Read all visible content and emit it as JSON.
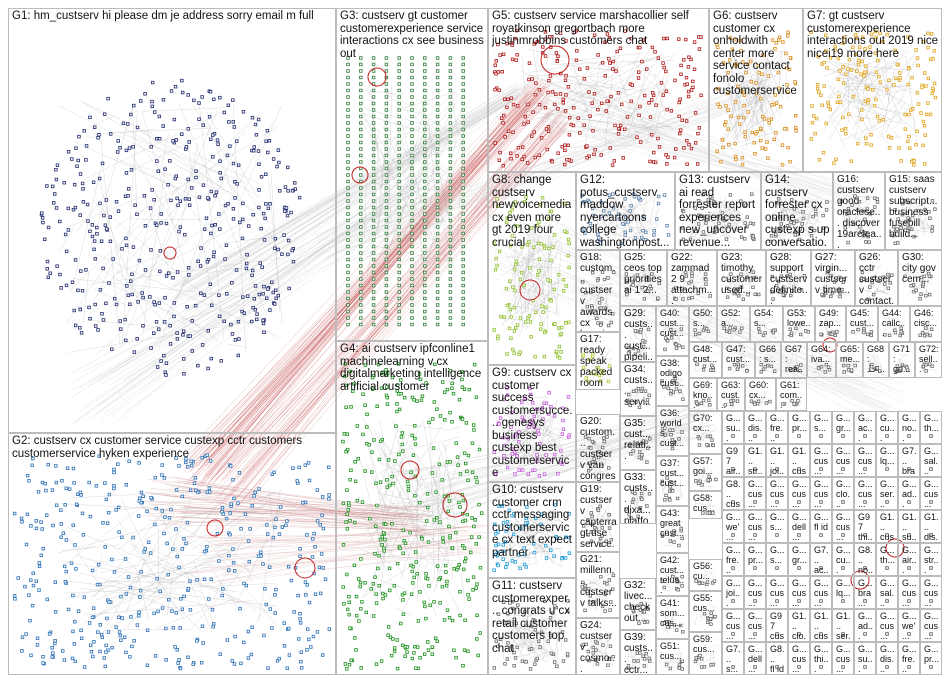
{
  "groups": [
    {
      "id": "G1",
      "label": "G1: hm_custserv hi please dm je address sorry email m full",
      "color": "#1f2a6b"
    },
    {
      "id": "G2",
      "label": "G2: custserv cx customer service custexp cctr customers customerservice hyken experience",
      "color": "#2c6fb5"
    },
    {
      "id": "G3",
      "label": "G3: custserv gt customer customerexperience service interactions cx see business out",
      "color": "#2f7a3a"
    },
    {
      "id": "G4",
      "label": "G4: ai custserv ipfconline1 machinelearning v cx digitalmarketing intelligence artificial customer",
      "color": "#1b8f1b"
    },
    {
      "id": "G5",
      "label": "G5: custserv service marshacollier self royatkinson gregortbach more justinmrobbins customers chat",
      "color": "#b01818"
    },
    {
      "id": "G6",
      "label": "G6: custserv customer cx onholdwith center more service contact fonolo customerservice",
      "color": "#d98b1a"
    },
    {
      "id": "G7",
      "label": "G7: gt custserv customerexperience interactions out 2019 nice nicei19 more here",
      "color": "#e0a21a"
    },
    {
      "id": "G8",
      "label": "G8: change custserv newvoicemedia cx even more gt 2019 four crucial",
      "color": "#8fbf2a"
    },
    {
      "id": "G9",
      "label": "G9: custserv cx customer success customersucce... genesys business custexp best customerservice",
      "color": "#c25bd6"
    },
    {
      "id": "G10",
      "label": "G10: custserv customer crm cctr messaging customerservice cx text expect partner",
      "color": "#1f9ad6"
    },
    {
      "id": "G11",
      "label": "G11: custserv customerexper... congrats u cx retail customer customers top chat",
      "color": "#6a6a6a"
    },
    {
      "id": "G12",
      "label": "G12: potus_custserv maddow nyercartoons college washingtonpost...",
      "color": "#5a7fa8"
    },
    {
      "id": "G13",
      "label": "G13: custserv ai read forrester report experiences new_uncover revenue...",
      "color": "#6b6b6b"
    },
    {
      "id": "G14",
      "label": "G14: custserv forrester cx online custexp s up conversatio...",
      "color": "#6b6b6b"
    },
    {
      "id": "G15",
      "label": "G15: saas custserv subscript... business fusebill build...",
      "color": "#6b6b6b"
    },
    {
      "id": "G16",
      "label": "G16: custserv good oraclese... discover 19arelea...",
      "color": "#6b6b6b"
    },
    {
      "id": "G17",
      "label": "G17: ready speak packed room here...",
      "color": "#b3c733"
    },
    {
      "id": "G18",
      "label": "G18: custom... custserv awards cx happin...",
      "color": "#6b6b6b"
    },
    {
      "id": "G19",
      "label": "G19: custserv capterra gt use service...",
      "color": "#6b6b6b"
    },
    {
      "id": "G20",
      "label": "G20: custom... custserv van congres customer",
      "color": "#6b6b6b"
    },
    {
      "id": "G21",
      "label": "G21: millenn... custserv talks...",
      "color": "#6b6b6b"
    },
    {
      "id": "G22",
      "label": "G22: zammad 2 9 attachm...",
      "color": "#6b6b6b"
    },
    {
      "id": "G23",
      "label": "G23: timothy customer used...",
      "color": "#6b6b6b"
    },
    {
      "id": "G24",
      "label": "G24: custserv cosmo... united...",
      "color": "#6b6b6b"
    },
    {
      "id": "G25",
      "label": "G25: ceos top priorities ai 1 2...",
      "color": "#6b6b6b"
    },
    {
      "id": "G26",
      "label": "G26: cctr custserv contact...",
      "color": "#6b6b6b"
    },
    {
      "id": "G27",
      "label": "G27: virgin... custserv time...",
      "color": "#6b6b6b"
    },
    {
      "id": "G28",
      "label": "G28: support custserv definite...",
      "color": "#6b6b6b"
    },
    {
      "id": "G29",
      "label": "G29: custs... cust... pipeli...",
      "color": "#6b6b6b"
    },
    {
      "id": "G30",
      "label": "G30: city gov cem...",
      "color": "#6b6b6b"
    },
    {
      "id": "G32",
      "label": "G32: livec... check out...",
      "color": "#6b6b6b"
    },
    {
      "id": "G33",
      "label": "G33: custs... dixa... platfo...",
      "color": "#6b6b6b"
    },
    {
      "id": "G34",
      "label": "G34: custs... servi... exper...",
      "color": "#6b6b6b"
    },
    {
      "id": "G35",
      "label": "G35: cust... relati...",
      "color": "#6b6b6b"
    },
    {
      "id": "G36",
      "label": "G36: world s cust...",
      "color": "#6b6b6b"
    },
    {
      "id": "G37",
      "label": "G37: cust... cust...",
      "color": "#6b6b6b"
    },
    {
      "id": "G38",
      "label": "G38: odigo cust...",
      "color": "#6b6b6b"
    },
    {
      "id": "G39",
      "label": "G39: custs... cctr...",
      "color": "#6b6b6b"
    },
    {
      "id": "G40",
      "label": "G40: cust... cust...",
      "color": "#6b6b6b"
    },
    {
      "id": "G41",
      "label": "G41: som... cus...",
      "color": "#6b6b6b"
    },
    {
      "id": "G42",
      "label": "G42: cust... telus...",
      "color": "#6b6b6b"
    },
    {
      "id": "G43",
      "label": "G43: great cust...",
      "color": "#6b6b6b"
    },
    {
      "id": "G44",
      "label": "G44: callc...",
      "color": "#6b6b6b"
    },
    {
      "id": "G45",
      "label": "G45: cust...",
      "color": "#6b6b6b"
    },
    {
      "id": "G46",
      "label": "G46: cisc...",
      "color": "#6b6b6b"
    },
    {
      "id": "G47",
      "label": "G47: cust...",
      "color": "#6b6b6b"
    },
    {
      "id": "G48",
      "label": "G48: cust...",
      "color": "#6b6b6b"
    },
    {
      "id": "G49",
      "label": "G49: zap...",
      "color": "#6b6b6b"
    },
    {
      "id": "G50",
      "label": "G50: s...",
      "color": "#6b6b6b"
    },
    {
      "id": "G51",
      "label": "G51: cus...",
      "color": "#6b6b6b"
    },
    {
      "id": "G52",
      "label": "G52: a...",
      "color": "#6b6b6b"
    },
    {
      "id": "G53",
      "label": "G53: lowe...",
      "color": "#6b6b6b"
    },
    {
      "id": "G54",
      "label": "G54: s...",
      "color": "#6b6b6b"
    },
    {
      "id": "G55",
      "label": "G55: cus...",
      "color": "#6b6b6b"
    },
    {
      "id": "G56",
      "label": "G56: cu...",
      "color": "#6b6b6b"
    },
    {
      "id": "G57",
      "label": "G57: goi...",
      "color": "#6b6b6b"
    },
    {
      "id": "G58",
      "label": "G58: cus...",
      "color": "#6b6b6b"
    },
    {
      "id": "G59",
      "label": "G59: cus...",
      "color": "#6b6b6b"
    },
    {
      "id": "G60",
      "label": "G60: cx...",
      "color": "#6b6b6b"
    },
    {
      "id": "G61",
      "label": "G61: com...",
      "color": "#6b6b6b"
    },
    {
      "id": "G62",
      "label": "G62: cus...",
      "color": "#6b6b6b"
    },
    {
      "id": "G63",
      "label": "G63: cust...",
      "color": "#6b6b6b"
    },
    {
      "id": "G64",
      "label": "G64: iva...",
      "color": "#6b6b6b"
    },
    {
      "id": "G65",
      "label": "G65: me...",
      "color": "#6b6b6b"
    },
    {
      "id": "G66",
      "label": "G66: s...",
      "color": "#6b6b6b"
    },
    {
      "id": "G67",
      "label": "G67: rea...",
      "color": "#6b6b6b"
    },
    {
      "id": "G68",
      "label": "G68: ﺧﺪ...",
      "color": "#6b6b6b"
    },
    {
      "id": "G69",
      "label": "G69: kno...",
      "color": "#6b6b6b"
    },
    {
      "id": "G70",
      "label": "G70: cx...",
      "color": "#6b6b6b"
    },
    {
      "id": "G71",
      "label": "G71: gd...",
      "color": "#6b6b6b"
    },
    {
      "id": "G72",
      "label": "G72: sell...",
      "color": "#6b6b6b"
    }
  ],
  "small_group_labels": [
    "G...",
    "G...",
    "G...",
    "G...",
    "G...",
    "G...",
    "G...",
    "G...",
    "G...",
    "G...",
    "G97",
    "G1...",
    "G1...",
    "G1...",
    "G...",
    "G...",
    "G...",
    "G...",
    "G7...",
    "G...",
    "G8...",
    "G...",
    "G...",
    "G...",
    "G...",
    "G..."
  ],
  "small_group_words": [
    "su...",
    "dis...",
    "fre...",
    "pr...",
    "s...",
    "gr...",
    "ac...",
    "cu...",
    "no...",
    "th...",
    "air...",
    "str...",
    "joi...",
    "cus...",
    "cus...",
    "cus...",
    "cus...",
    "lq...",
    "bra...",
    "sal...",
    "cus...",
    "cus...",
    "cus...",
    "cus...",
    "cus...",
    "clo...",
    "cus...",
    "ser...",
    "ad...",
    "cus...",
    "we'...",
    "cus...",
    "s...",
    "dell...",
    "fl id",
    "cus...",
    "thi...",
    "cus..."
  ]
}
